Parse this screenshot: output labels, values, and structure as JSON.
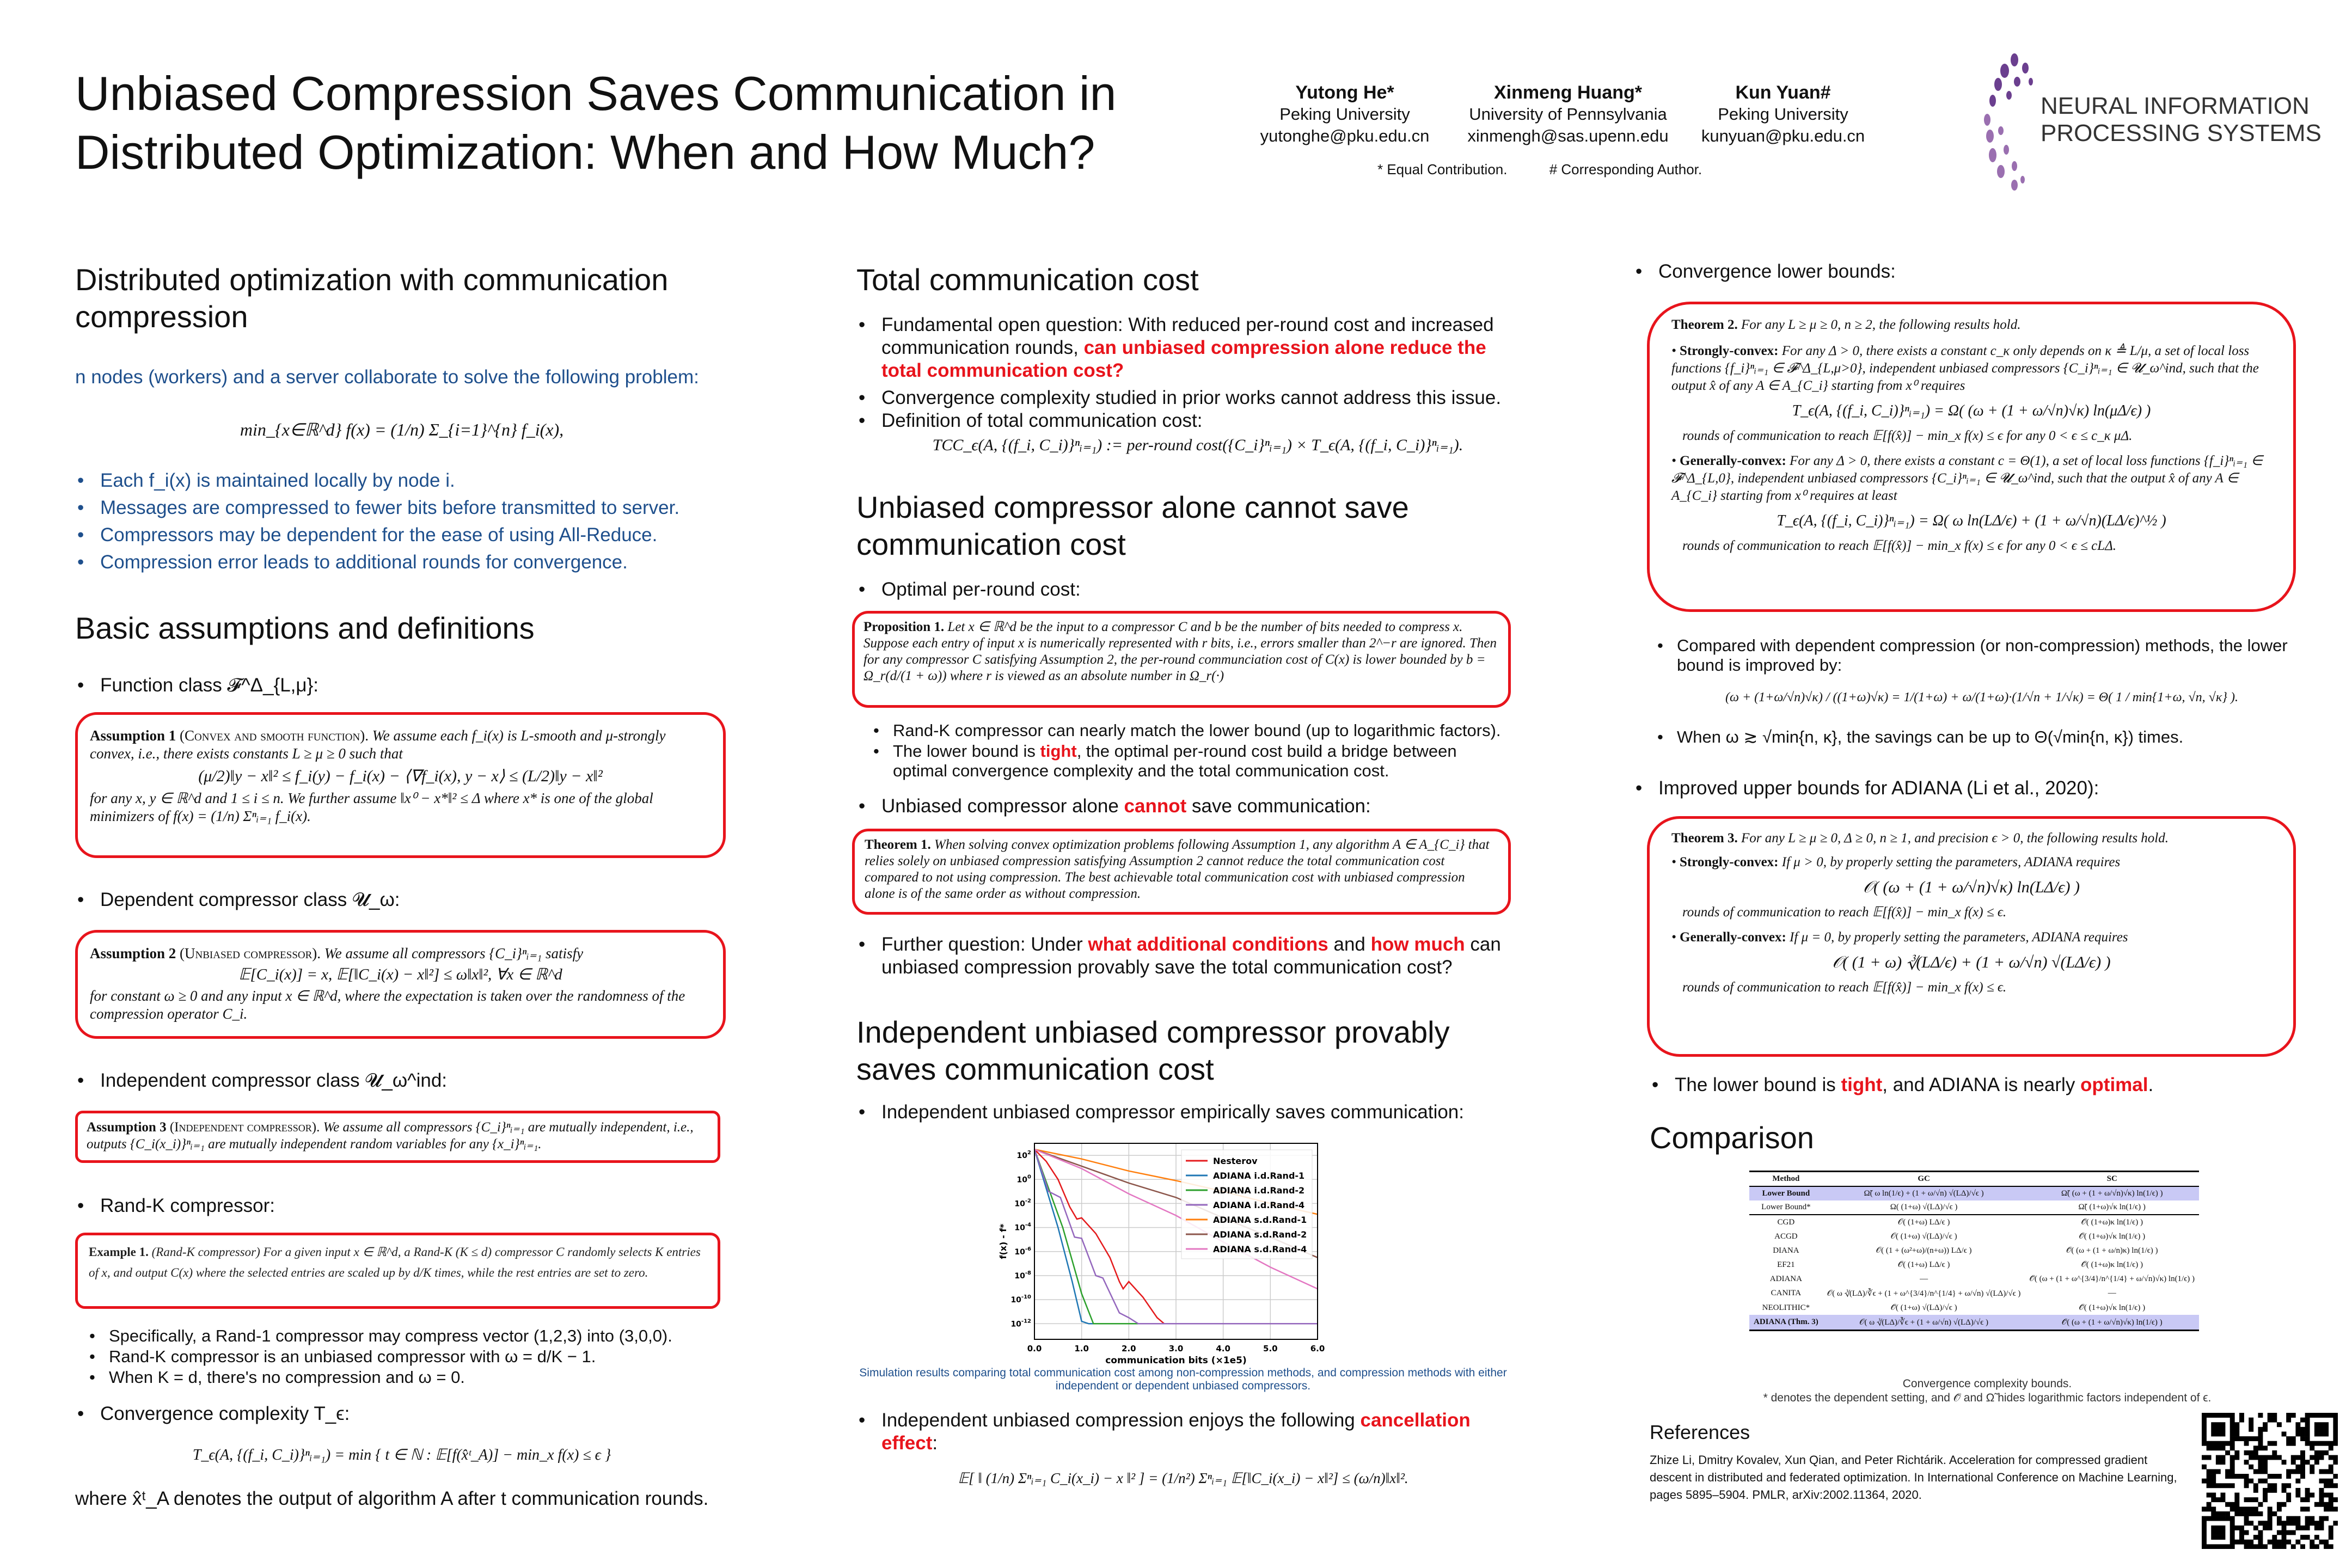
{
  "header": {
    "title": "Unbiased Compression Saves Communication in Distributed Optimization: When and How Much?",
    "authors": [
      {
        "name": "Yutong He*",
        "affiliation": "Peking University",
        "email": "yutonghe@pku.edu.cn"
      },
      {
        "name": "Xinmeng Huang*",
        "affiliation": "University of Pennsylvania",
        "email": "xinmengh@sas.upenn.edu"
      },
      {
        "name": "Kun Yuan#",
        "affiliation": "Peking University",
        "email": "kunyuan@pku.edu.cn"
      }
    ],
    "note_equal": "*  Equal Contribution.",
    "note_corresponding": "#  Corresponding Author.",
    "logo_text_1": "NEURAL INFORMATION",
    "logo_text_2": "PROCESSING SYSTEMS",
    "logo_color": "#6b3f8f"
  },
  "col1": {
    "h_dist": "Distributed optimization with communication compression",
    "intro": "n nodes (workers) and a server collaborate to solve the following problem:",
    "problem": "min_{x∈ℝ^d}   f(x) = (1/n) Σ_{i=1}^{n} f_i(x),",
    "bullets": [
      "Each f_i(x) is maintained locally by node i.",
      "Messages are compressed to fewer bits before transmitted to server.",
      "Compressors may be dependent for the ease of using All-Reduce.",
      "Compression error leads to additional rounds for convergence."
    ],
    "h_basic": "Basic assumptions and definitions",
    "function_class": "Function class 𝓕^Δ_{L,μ}:",
    "assumption1_head": "Assumption 1",
    "assumption1_tag": "(Convex and smooth function).",
    "assumption1_text": "We assume each f_i(x) is L-smooth and μ-strongly convex, i.e., there exists constants L ≥ μ ≥ 0 such that",
    "assumption1_eq": "(μ/2)‖y − x‖² ≤ f_i(y) − f_i(x) − ⟨∇f_i(x), y − x⟩ ≤ (L/2)‖y − x‖²",
    "assumption1_tail": "for any x, y ∈ ℝ^d and 1 ≤ i ≤ n. We further assume ‖x⁰ − x*‖² ≤ Δ where x* is one of the global minimizers of f(x) = (1/n) Σⁿᵢ₌₁ f_i(x).",
    "dependent_class": "Dependent compressor class 𝓤_ω:",
    "assumption2_head": "Assumption 2",
    "assumption2_tag": "(Unbiased compressor).",
    "assumption2_text": "We assume all compressors {C_i}ⁿᵢ₌₁ satisfy",
    "assumption2_eq": "𝔼[C_i(x)] = x,    𝔼[‖C_i(x) − x‖²] ≤ ω‖x‖²,    ∀x ∈ ℝ^d",
    "assumption2_tail": "for constant ω ≥ 0 and any input x ∈ ℝ^d, where the expectation is taken over the randomness of the compression operator C_i.",
    "independent_class": "Independent compressor class 𝓤_ω^ind:",
    "assumption3_head": "Assumption 3",
    "assumption3_tag": "(Independent compressor).",
    "assumption3_text": "We assume all compressors {C_i}ⁿᵢ₌₁ are mutually independent, i.e., outputs {C_i(x_i)}ⁿᵢ₌₁ are mutually independent random variables for any {x_i}ⁿᵢ₌₁.",
    "randk": "Rand-K compressor:",
    "example_head": "Example 1.",
    "example_text": "(Rand-K compressor) For a given input x ∈ ℝ^d, a Rand-K (K ≤ d) compressor C randomly selects K entries of x, and output C(x) where the selected entries are scaled up by d/K times, while the rest entries are set to zero.",
    "randk_sub": [
      "Specifically, a Rand-1 compressor may compress vector (1,2,3) into (3,0,0).",
      "Rand-K compressor is an unbiased compressor with ω = d/K − 1.",
      "When K = d, there's no compression and ω = 0."
    ],
    "conv_complexity": "Convergence complexity T_ϵ:",
    "conv_eq": "T_ϵ(A, {(f_i, C_i)}ⁿᵢ₌₁) = min { t ∈ ℕ : 𝔼[f(x̂ᵗ_A)] − min_x f(x) ≤ ϵ }",
    "conv_where": "where x̂ᵗ_A denotes the output of algorithm A after t communication rounds."
  },
  "col2": {
    "h_total": "Total communication cost",
    "total_b1_pre": "Fundamental open question: With reduced per-round cost and increased communication rounds, ",
    "total_b1_red": "can unbiased compression alone reduce the total communication cost?",
    "total_b2": "Convergence complexity studied in prior works cannot address this issue.",
    "total_b3": "Definition of total communication cost:",
    "tcc_eq": "TCC_ϵ(A, {(f_i, C_i)}ⁿᵢ₌₁) := per-round cost({C_i}ⁿᵢ₌₁) × T_ϵ(A, {(f_i, C_i)}ⁿᵢ₌₁).",
    "h_unbiased": "Unbiased compressor alone cannot save communication cost",
    "optimal": "Optimal per-round cost:",
    "prop_head": "Proposition 1.",
    "prop_text": "Let x ∈ ℝ^d be the input to a compressor C and b be the number of bits needed to compress x. Suppose each entry of input x is numerically represented with r bits, i.e., errors smaller than 2^−r are ignored. Then for any compressor C satisfying Assumption 2, the per-round communciation cost of C(x) is lower bounded by b = Ω_r(d/(1 + ω)) where r is viewed as an absolute number in Ω_r(·)",
    "randk_match": "Rand-K compressor can nearly match the lower bound (up to logarithmic factors).",
    "tight_pre": "The lower bound is ",
    "tight_red": "tight",
    "tight_post": ", the optimal per-round cost build a bridge between optimal convergence complexity and the total communication cost.",
    "cannot_pre": "Unbiased compressor alone ",
    "cannot_red": "cannot",
    "cannot_post": " save communication:",
    "thm1_head": "Theorem 1.",
    "thm1_text": "When solving convex optimization problems following Assumption 1, any algorithm A ∈ A_{C_i} that relies solely on unbiased compression satisfying Assumption 2 cannot reduce the total communication cost compared to not using compression. The best achievable total communication cost with unbiased compression alone is of the same order as without compression.",
    "further_pre": "Further question: Under ",
    "further_red1": "what additional conditions",
    "further_mid": " and ",
    "further_red2": "how much",
    "further_post": " can unbiased compression provably save the total communication cost?",
    "h_independent": "Independent unbiased compressor provably saves communication cost",
    "indep_b1": "Independent unbiased compressor empirically saves communication:",
    "chart_caption": "Simulation results comparing total communication cost among non-compression methods, and compression methods with either independent or dependent unbiased compressors.",
    "cancel_pre": "Independent unbiased compression enjoys the following ",
    "cancel_red": "cancellation effect",
    "cancel_post": ":",
    "cancel_eq": "𝔼[ ‖ (1/n) Σⁿᵢ₌₁ C_i(x_i) − x ‖² ] = (1/n²) Σⁿᵢ₌₁ 𝔼[‖C_i(x_i) − x‖²] ≤ (ω/n)‖x‖²."
  },
  "chart_data": {
    "type": "line",
    "xlabel": "communication bits (×1e5)",
    "ylabel": "f(x) - f*",
    "yscale": "log",
    "xlim": [
      0,
      6
    ],
    "ylim_log10": [
      -13.3,
      3.0
    ],
    "xticks": [
      "0.0",
      "1.0",
      "2.0",
      "3.0",
      "4.0",
      "5.0",
      "6.0"
    ],
    "yticks_exp": [
      2,
      0,
      -2,
      -4,
      -6,
      -8,
      -10,
      -12
    ],
    "grid": true,
    "legend": "top-right",
    "series": [
      {
        "name": "Nesterov",
        "color": "#e41a1c",
        "points": [
          [
            0,
            2.5
          ],
          [
            0.25,
            1.5
          ],
          [
            0.5,
            0
          ],
          [
            0.75,
            -2.3
          ],
          [
            0.9,
            -3.3
          ],
          [
            1.0,
            -3.2
          ],
          [
            1.3,
            -4.5
          ],
          [
            1.6,
            -6.5
          ],
          [
            1.8,
            -8.5
          ],
          [
            1.88,
            -9.1
          ],
          [
            2.0,
            -8.5
          ],
          [
            2.3,
            -9.8
          ],
          [
            2.6,
            -11.5
          ],
          [
            2.75,
            -12
          ],
          [
            6,
            -12
          ]
        ]
      },
      {
        "name": "ADIANA i.d.Rand-1",
        "color": "#1f77b4",
        "points": [
          [
            0,
            2.5
          ],
          [
            0.5,
            -4
          ],
          [
            0.8,
            -8.5
          ],
          [
            1.0,
            -11.8
          ],
          [
            1.15,
            -12
          ],
          [
            2.0,
            -12
          ]
        ]
      },
      {
        "name": "ADIANA i.d.Rand-2",
        "color": "#2ca02c",
        "points": [
          [
            0,
            2.5
          ],
          [
            0.6,
            -4
          ],
          [
            1.0,
            -9.5
          ],
          [
            1.25,
            -12
          ],
          [
            2.2,
            -12
          ]
        ]
      },
      {
        "name": "ADIANA i.d.Rand-4",
        "color": "#9467bd",
        "points": [
          [
            0,
            2.5
          ],
          [
            0.3,
            -1
          ],
          [
            0.4,
            -1.2
          ],
          [
            0.55,
            -1.5
          ],
          [
            0.85,
            -4.8
          ],
          [
            1.0,
            -4.9
          ],
          [
            1.3,
            -8
          ],
          [
            1.45,
            -8.2
          ],
          [
            1.8,
            -11.1
          ],
          [
            2.0,
            -11.5
          ],
          [
            2.2,
            -12
          ],
          [
            6,
            -12
          ]
        ]
      },
      {
        "name": "ADIANA s.d.Rand-1",
        "color": "#ff7f0e",
        "points": [
          [
            0,
            2.5
          ],
          [
            1,
            1.7
          ],
          [
            2,
            0.7
          ],
          [
            3,
            -0.1
          ],
          [
            4,
            -1
          ],
          [
            5,
            -2
          ],
          [
            6,
            -2.9
          ]
        ]
      },
      {
        "name": "ADIANA s.d.Rand-2",
        "color": "#8c564b",
        "points": [
          [
            0,
            2.5
          ],
          [
            1,
            1.1
          ],
          [
            2,
            -0.3
          ],
          [
            3,
            -1.5
          ],
          [
            4,
            -3.2
          ],
          [
            5,
            -4.8
          ],
          [
            6,
            -6.5
          ]
        ]
      },
      {
        "name": "ADIANA s.d.Rand-4",
        "color": "#e377c2",
        "points": [
          [
            0,
            2.5
          ],
          [
            1,
            0.9
          ],
          [
            2,
            -1.2
          ],
          [
            3,
            -3
          ],
          [
            4,
            -5.2
          ],
          [
            5,
            -7.3
          ],
          [
            6,
            -9.1
          ]
        ]
      }
    ]
  },
  "col3": {
    "lower_bounds": "Convergence lower bounds:",
    "thm2_head": "Theorem 2.",
    "thm2_intro": "For any L ≥ μ ≥ 0, n ≥ 2, the following results hold.",
    "thm2_sc_head": "Strongly-convex:",
    "thm2_sc_text": "For any Δ > 0, there exists a constant c_κ only depends on κ ≜ L/μ, a set of local loss functions {f_i}ⁿᵢ₌₁ ∈ 𝓕^Δ_{L,μ>0}, independent unbiased compressors {C_i}ⁿᵢ₌₁ ∈ 𝓤_ω^ind, such that the output x̂ of any A ∈ A_{C_i} starting from x⁰ requires",
    "thm2_sc_eq": "T_ϵ(A, {(f_i, C_i)}ⁿᵢ₌₁) = Ω( (ω + (1 + ω/√n)√κ) ln(μΔ/ϵ) )",
    "thm2_sc_tail": "rounds of communication to reach 𝔼[f(x̂)] − min_x f(x) ≤ ϵ for any 0 < ϵ ≤ c_κ μΔ.",
    "thm2_gc_head": "Generally-convex:",
    "thm2_gc_text": "For any Δ > 0, there exists a constant c = Θ(1), a set of local loss functions {f_i}ⁿᵢ₌₁ ∈ 𝓕^Δ_{L,0}, independent unbiased compressors {C_i}ⁿᵢ₌₁ ∈ 𝓤_ω^ind, such that the output x̂ of any A ∈ A_{C_i} starting from x⁰ requires at least",
    "thm2_gc_eq": "T_ϵ(A, {(f_i, C_i)}ⁿᵢ₌₁) = Ω( ω ln(LΔ/ϵ) + (1 + ω/√n)(LΔ/ϵ)^½ )",
    "thm2_gc_tail": "rounds of communication to reach 𝔼[f(x̂)] − min_x f(x) ≤ ϵ for any 0 < ϵ ≤ cLΔ.",
    "compared": "Compared with dependent compression (or non-compression) methods, the lower bound is improved by:",
    "compared_eq": "(ω + (1+ω/√n)√κ) / ((1+ω)√κ) = 1/(1+ω) + ω/(1+ω)·(1/√n + 1/√κ) = Θ( 1 / min{1+ω, √n, √κ} ).",
    "when": "When ω ≳ √min{n, κ}, the savings can be up to Θ(√min{n, κ}) times.",
    "improved": "Improved upper bounds for ADIANA (Li et al., 2020):",
    "thm3_head": "Theorem 3.",
    "thm3_intro": "For any L ≥ μ ≥ 0, Δ ≥ 0, n ≥ 1, and precision ϵ > 0, the following results hold.",
    "thm3_sc_head": "Strongly-convex:",
    "thm3_sc_text": "If μ > 0, by properly setting the parameters, ADIANA requires",
    "thm3_sc_eq": "𝒪( (ω + (1 + ω/√n)√κ) ln(LΔ/ϵ) )",
    "thm3_sc_tail": "rounds of communication to reach 𝔼[f(x̂)] − min_x f(x) ≤ ϵ.",
    "thm3_gc_head": "Generally-convex:",
    "thm3_gc_text": "If μ = 0, by properly setting the parameters, ADIANA requires",
    "thm3_gc_eq": "𝒪( (1 + ω) ∛(LΔ/ϵ) + (1 + ω/√n) √(LΔ/ϵ) )",
    "thm3_gc_tail": "rounds of communication to reach 𝔼[f(x̂)] − min_x f(x) ≤ ϵ.",
    "lb_pre": "The lower bound is ",
    "lb_red1": "tight",
    "lb_mid": ", and ADIANA is nearly ",
    "lb_red2": "optimal",
    "lb_post": ".",
    "h_comparison": "Comparison",
    "table": {
      "headers": [
        "Method",
        "GC",
        "SC"
      ],
      "rows": [
        {
          "method": "Lower Bound",
          "gc": "Ω̃( ω ln(1/ϵ) + (1 + ω/√n) √(LΔ)/√ϵ )",
          "sc": "Ω̃( (ω + (1 + ω/√n)√κ) ln(1/ϵ) )",
          "highlight": true
        },
        {
          "method": "Lower Bound*",
          "gc": "Ω( (1+ω) √(LΔ)/√ϵ )",
          "sc": "Ω̃( (1+ω)√κ ln(1/ϵ) )",
          "highlight": false
        },
        {
          "method": "CGD",
          "gc": "𝒪( (1+ω) LΔ/ϵ )",
          "sc": "𝒪̃( (1+ω)κ ln(1/ϵ) )",
          "highlight": false
        },
        {
          "method": "ACGD",
          "gc": "𝒪( (1+ω) √(LΔ)/√ϵ )",
          "sc": "𝒪̃( (1+ω)√κ ln(1/ϵ) )",
          "highlight": false
        },
        {
          "method": "DIANA",
          "gc": "𝒪( (1 + (ω²+ω)/(n+ω)) LΔ/ϵ )",
          "sc": "𝒪̃( (ω + (1 + ω/n)κ) ln(1/ϵ) )",
          "highlight": false
        },
        {
          "method": "EF21",
          "gc": "𝒪̃( (1+ω) LΔ/ϵ )",
          "sc": "𝒪̃( (1+ω)κ ln(1/ϵ) )",
          "highlight": false
        },
        {
          "method": "ADIANA",
          "gc": "—",
          "sc": "𝒪̃( (ω + (1 + ω^{3/4}/n^{1/4} + ω/√n)√κ) ln(1/ϵ) )",
          "highlight": false
        },
        {
          "method": "CANITA",
          "gc": "𝒪( ω ∛(LΔ)/∛ϵ + (1 + ω^{3/4}/n^{1/4} + ω/√n) √(LΔ)/√ϵ )",
          "sc": "—",
          "highlight": false
        },
        {
          "method": "NEOLITHIC*",
          "gc": "𝒪̃( (1+ω) √(LΔ)/√ϵ )",
          "sc": "𝒪̃( (1+ω)√κ ln(1/ϵ) )",
          "highlight": false
        },
        {
          "method": "ADIANA (Thm. 3)",
          "gc": "𝒪( ω ∛(LΔ)/∛ϵ + (1 + ω/√n) √(LΔ)/√ϵ )",
          "sc": "𝒪̃( (ω + (1 + ω/√n)√κ) ln(1/ϵ) )",
          "highlight": true
        }
      ],
      "highlight_color": "#c9c9f5"
    },
    "table_caption": "Convergence complexity bounds.",
    "table_note": "* denotes the dependent setting, and 𝒪̃ and Ω̃ hides logarithmic factors independent of ϵ.",
    "h_references": "References",
    "reference": "Zhize Li, Dmitry Kovalev, Xun Qian, and Peter Richtárik. Acceleration for compressed gradient descent in distributed and federated optimization. In International Conference on Machine Learning, pages 5895–5904. PMLR, arXiv:2002.11364, 2020."
  },
  "accent_color": "#e8141c"
}
